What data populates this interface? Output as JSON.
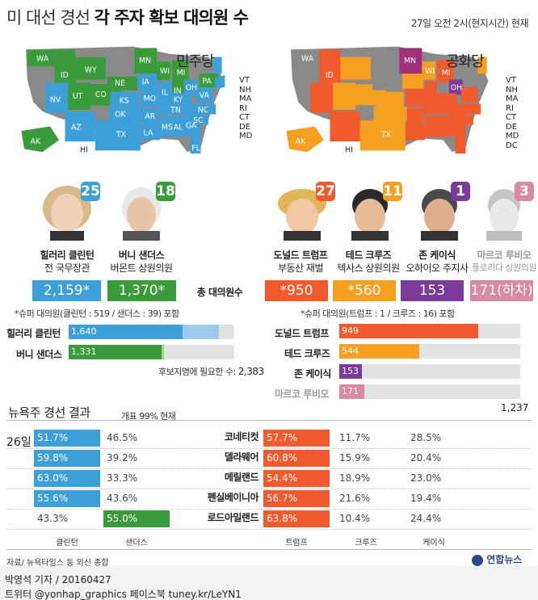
{
  "header": {
    "title_prefix": "미 대선 경선",
    "title_main": "각 주자 확보 대의원 수",
    "timestamp": "27일 오전 2시(현지시간) 현재"
  },
  "colors": {
    "clinton": "#3d9fd8",
    "sanders": "#3a9b3a",
    "trump": "#f05a2c",
    "cruz": "#f5a020",
    "kasich": "#7b3b9a",
    "rubio": "#d98aa0",
    "gray": "#8a8a8a"
  },
  "dem": {
    "map_title": "민주당",
    "states": [
      "WA",
      "ID",
      "WY",
      "NV",
      "UT",
      "CO",
      "NE",
      "KS",
      "AZ",
      "OK",
      "TX",
      "MN",
      "IA",
      "WI",
      "MI",
      "MO",
      "IL",
      "IN",
      "OH",
      "AR",
      "MS",
      "TN",
      "KY",
      "NC",
      "SC",
      "GA",
      "FL",
      "VA",
      "PA",
      "AL",
      "LA",
      "AK",
      "HI"
    ],
    "ne_list": [
      "VT",
      "NH",
      "MA",
      "RI",
      "CT",
      "DE",
      "MD"
    ],
    "candidates": [
      {
        "name": "힐러리 클린턴",
        "role": "전 국무장관",
        "count": "25",
        "total": "2,159*"
      },
      {
        "name": "버니 샌더스",
        "role": "버몬트 상원의원",
        "count": "18",
        "total": "1,370*"
      }
    ],
    "total_label": "총 대의원수",
    "super_note": "*슈퍼 대의원(클린턴 : 519 / 샌더스 : 39) 포함",
    "bars": [
      {
        "name": "힐러리 클린턴",
        "label": "1,640",
        "value": 1640,
        "with_super": 2159
      },
      {
        "name": "버니 샌더스",
        "label": "1,331",
        "value": 1331,
        "with_super": 1370
      }
    ],
    "threshold_label": "후보지명에 필요한 수:",
    "threshold_value": "2,383"
  },
  "rep": {
    "map_title": "공화당",
    "states": [
      "WA",
      "ID",
      "WY",
      "NV",
      "UT",
      "CO",
      "AZ",
      "NM",
      "TX",
      "OK",
      "KS",
      "NE",
      "SD",
      "ND",
      "MT",
      "MN",
      "IA",
      "WI",
      "MI",
      "OH",
      "IN",
      "IL",
      "MO",
      "AR",
      "LA",
      "MS",
      "AL",
      "TN",
      "KY",
      "GA",
      "SC",
      "NC",
      "VA",
      "WV",
      "PA",
      "NY",
      "FL",
      "ME",
      "AK",
      "HI"
    ],
    "ne_list": [
      "VT",
      "NH",
      "MA",
      "RI",
      "CT",
      "DE",
      "MD",
      "DC"
    ],
    "candidates": [
      {
        "name": "도널드 트럼프",
        "role": "부동산 재벌",
        "count": "27",
        "total": "*950"
      },
      {
        "name": "테드 크루즈",
        "role": "텍사스 상원의원",
        "count": "11",
        "total": "*560"
      },
      {
        "name": "존 케이식",
        "role": "오하이오 주지사",
        "count": "1",
        "total": "153"
      },
      {
        "name": "마르코 루비오",
        "role": "플로리다 상원의원",
        "count": "3",
        "total": "171(하차)"
      }
    ],
    "super_note": "*슈퍼 대의원(트럼프 : 1 / 크루즈 : 16) 포함",
    "bars": [
      {
        "name": "도널드 트럼프",
        "label": "949",
        "value": 949
      },
      {
        "name": "테드 크루즈",
        "label": "544",
        "value": 544
      },
      {
        "name": "존 케이식",
        "label": "153",
        "value": 153
      },
      {
        "name": "마르코 루비오",
        "label": "171",
        "value": 171
      }
    ],
    "threshold_value": "1,237"
  },
  "ny": {
    "title": "뉴욕주 경선 결과",
    "subtitle": "개표 99% 현재",
    "date": "26일",
    "rows": [
      {
        "state": "코네티컷",
        "clinton": "51.7%",
        "sanders": "46.5%",
        "trump": "57.7%",
        "cruz": "11.7%",
        "kasich": "28.5%",
        "dem_winner": "clinton"
      },
      {
        "state": "델라웨어",
        "clinton": "59.8%",
        "sanders": "39.2%",
        "trump": "60.8%",
        "cruz": "15.9%",
        "kasich": "20.4%",
        "dem_winner": "clinton"
      },
      {
        "state": "메릴랜드",
        "clinton": "63.0%",
        "sanders": "33.3%",
        "trump": "54.4%",
        "cruz": "18.9%",
        "kasich": "23.0%",
        "dem_winner": "clinton"
      },
      {
        "state": "펜실베이니아",
        "clinton": "55.6%",
        "sanders": "43.6%",
        "trump": "56.7%",
        "cruz": "21.6%",
        "kasich": "19.4%",
        "dem_winner": "clinton"
      },
      {
        "state": "로드아일랜드",
        "clinton": "43.3%",
        "sanders": "55.0%",
        "trump": "63.8%",
        "cruz": "10.4%",
        "kasich": "24.4%",
        "dem_winner": "sanders"
      }
    ],
    "columns": [
      "클린턴",
      "샌더스",
      "트럼프",
      "크루즈",
      "케이식"
    ]
  },
  "footer": {
    "source": "자료/ 뉴욕타임스 등 외신 종합",
    "logo": "연합뉴스",
    "credit": "박영석 기자 / 20160427",
    "social": "트위터 @yonhap_graphics  페이스북 tuney.kr/LeYN1"
  }
}
